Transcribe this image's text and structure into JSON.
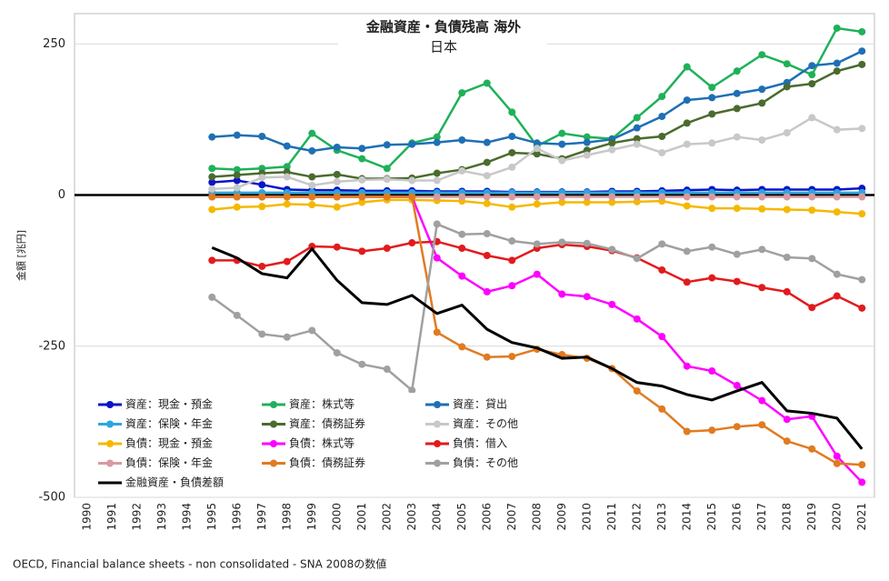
{
  "chart_data": {
    "type": "line",
    "title": "金融資産・負債残高 海外",
    "subtitle": "日本",
    "ylabel": "金額 [兆円]",
    "footnote": "OECD, Financial balance sheets - non consolidated - SNA 2008の数値",
    "categories": [
      "1990",
      "1991",
      "1992",
      "1993",
      "1994",
      "1995",
      "1996",
      "1997",
      "1998",
      "1999",
      "2000",
      "2001",
      "2002",
      "2003",
      "2004",
      "2005",
      "2006",
      "2007",
      "2008",
      "2009",
      "2010",
      "2011",
      "2012",
      "2013",
      "2014",
      "2015",
      "2016",
      "2017",
      "2018",
      "2019",
      "2020",
      "2021"
    ],
    "ylim": [
      -500,
      300
    ],
    "yticks": [
      -500,
      -250,
      0,
      250
    ],
    "grid": true,
    "series": [
      {
        "name": "資産：現金・預金",
        "color": "#0a14c8",
        "values": [
          null,
          null,
          null,
          null,
          null,
          21,
          24,
          17,
          9,
          8,
          8,
          7,
          7,
          7,
          6,
          6,
          6,
          5,
          5,
          5,
          5,
          6,
          6,
          7,
          8,
          9,
          8,
          9,
          9,
          9,
          9,
          11
        ]
      },
      {
        "name": "資産：株式等",
        "color": "#1fb15a",
        "values": [
          null,
          null,
          null,
          null,
          null,
          44,
          42,
          44,
          47,
          102,
          74,
          60,
          44,
          86,
          96,
          169,
          185,
          137,
          81,
          102,
          96,
          93,
          128,
          163,
          212,
          178,
          205,
          232,
          217,
          199,
          276,
          270
        ]
      },
      {
        "name": "資産：貸出",
        "color": "#1f6fb5",
        "values": [
          null,
          null,
          null,
          null,
          null,
          96,
          99,
          97,
          81,
          73,
          79,
          77,
          83,
          84,
          87,
          91,
          87,
          97,
          86,
          84,
          87,
          92,
          111,
          130,
          157,
          161,
          168,
          175,
          186,
          214,
          218,
          238
        ]
      },
      {
        "name": "資産：保険・年金",
        "color": "#2aa7e0",
        "values": [
          null,
          null,
          null,
          null,
          null,
          4,
          4,
          4,
          4,
          4,
          4,
          4,
          4,
          4,
          4,
          4,
          4,
          4,
          4,
          4,
          4,
          4,
          4,
          4,
          4,
          4,
          4,
          4,
          4,
          4,
          4,
          4
        ]
      },
      {
        "name": "資産：債務証券",
        "color": "#4a6b2e",
        "values": [
          null,
          null,
          null,
          null,
          null,
          30,
          33,
          36,
          38,
          30,
          34,
          27,
          27,
          28,
          36,
          42,
          54,
          70,
          68,
          60,
          74,
          86,
          93,
          97,
          119,
          134,
          143,
          152,
          179,
          184,
          205,
          216
        ]
      },
      {
        "name": "資産：その他",
        "color": "#c8c8c8",
        "values": [
          null,
          null,
          null,
          null,
          null,
          10,
          12,
          29,
          30,
          16,
          22,
          25,
          26,
          24,
          24,
          40,
          32,
          46,
          77,
          57,
          66,
          75,
          84,
          70,
          84,
          86,
          96,
          91,
          103,
          128,
          108,
          110
        ]
      },
      {
        "name": "負債：現金・預金",
        "color": "#f5b800",
        "values": [
          null,
          null,
          null,
          null,
          null,
          -24,
          -20,
          -19,
          -15,
          -16,
          -20,
          -12,
          -8,
          -8,
          -9,
          -10,
          -14,
          -20,
          -15,
          -12,
          -12,
          -12,
          -11,
          -10,
          -18,
          -22,
          -22,
          -23,
          -24,
          -25,
          -28,
          -31
        ]
      },
      {
        "name": "負債：株式等",
        "color": "#ff00ff",
        "values": [
          null,
          null,
          null,
          null,
          null,
          -3,
          -3,
          -3,
          -3,
          -3,
          -3,
          -3,
          -3,
          -3,
          -104,
          -134,
          -160,
          -150,
          -131,
          -164,
          -168,
          -181,
          -205,
          -234,
          -283,
          -291,
          -315,
          -340,
          -371,
          -366,
          -432,
          -475
        ]
      },
      {
        "name": "負債：借入",
        "color": "#e31a1c",
        "values": [
          null,
          null,
          null,
          null,
          null,
          -108,
          -108,
          -118,
          -110,
          -85,
          -86,
          -93,
          -88,
          -79,
          -77,
          -88,
          -100,
          -108,
          -88,
          -82,
          -85,
          -92,
          -104,
          -124,
          -144,
          -137,
          -143,
          -153,
          -160,
          -186,
          -167,
          -187
        ]
      },
      {
        "name": "負債：保険・年金",
        "color": "#d79aa0",
        "values": [
          null,
          null,
          null,
          null,
          null,
          -3,
          -3,
          -3,
          -3,
          -3,
          -3,
          -3,
          -3,
          -3,
          -3,
          -3,
          -3,
          -3,
          -3,
          -3,
          -3,
          -3,
          -3,
          -3,
          -3,
          -3,
          -3,
          -3,
          -3,
          -3,
          -3,
          -3
        ]
      },
      {
        "name": "負債：債務証券",
        "color": "#e07b20",
        "values": [
          null,
          null,
          null,
          null,
          null,
          -3,
          -3,
          -3,
          -3,
          -3,
          -3,
          -3,
          -3,
          -3,
          -227,
          -251,
          -268,
          -267,
          -255,
          -264,
          -270,
          -287,
          -324,
          -354,
          -391,
          -389,
          -383,
          -380,
          -407,
          -420,
          -444,
          -446
        ]
      },
      {
        "name": "負債：その他",
        "color": "#a0a0a0",
        "values": [
          null,
          null,
          null,
          null,
          null,
          -169,
          -199,
          -230,
          -235,
          -224,
          -261,
          -280,
          -288,
          -323,
          -48,
          -65,
          -64,
          -76,
          -81,
          -78,
          -80,
          -90,
          -105,
          -81,
          -93,
          -86,
          -98,
          -90,
          -103,
          -105,
          -131,
          -140
        ]
      },
      {
        "name": "金融資産・負債差額",
        "color": "#000000",
        "values": [
          null,
          null,
          null,
          null,
          null,
          -87,
          -104,
          -130,
          -137,
          -89,
          -141,
          -178,
          -181,
          -166,
          -196,
          -182,
          -222,
          -244,
          -253,
          -270,
          -268,
          -287,
          -310,
          -316,
          -330,
          -339,
          -324,
          -310,
          -357,
          -361,
          -369,
          -420
        ]
      }
    ]
  }
}
